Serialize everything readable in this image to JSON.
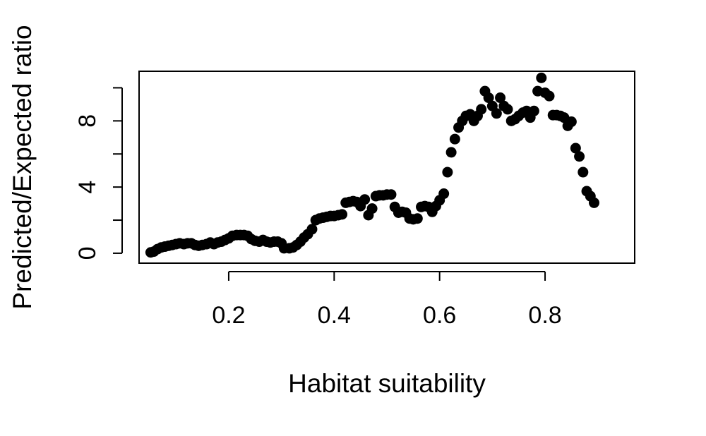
{
  "chart_data": {
    "type": "scatter",
    "title": "",
    "xlabel": "Habitat suitability",
    "ylabel": "Predicted/Expected ratio",
    "xlim": [
      0.03,
      0.97
    ],
    "ylim": [
      -0.6,
      11.0
    ],
    "x_ticks": [
      0.2,
      0.4,
      0.6,
      0.8
    ],
    "x_tick_labels": [
      "0.2",
      "0.4",
      "0.6",
      "0.8"
    ],
    "y_ticks": [
      0,
      2,
      4,
      6,
      8,
      10
    ],
    "y_tick_labels": [
      "0",
      "",
      "4",
      "",
      "8",
      ""
    ],
    "grid": false,
    "legend": "none",
    "point_color": "#000000",
    "points": [
      {
        "x": 0.052,
        "y": 0.05
      },
      {
        "x": 0.058,
        "y": 0.1
      },
      {
        "x": 0.065,
        "y": 0.25
      },
      {
        "x": 0.072,
        "y": 0.35
      },
      {
        "x": 0.079,
        "y": 0.4
      },
      {
        "x": 0.086,
        "y": 0.45
      },
      {
        "x": 0.093,
        "y": 0.5
      },
      {
        "x": 0.1,
        "y": 0.55
      },
      {
        "x": 0.107,
        "y": 0.6
      },
      {
        "x": 0.115,
        "y": 0.55
      },
      {
        "x": 0.122,
        "y": 0.6
      },
      {
        "x": 0.129,
        "y": 0.6
      },
      {
        "x": 0.136,
        "y": 0.5
      },
      {
        "x": 0.143,
        "y": 0.45
      },
      {
        "x": 0.15,
        "y": 0.5
      },
      {
        "x": 0.158,
        "y": 0.55
      },
      {
        "x": 0.165,
        "y": 0.65
      },
      {
        "x": 0.172,
        "y": 0.55
      },
      {
        "x": 0.179,
        "y": 0.65
      },
      {
        "x": 0.186,
        "y": 0.7
      },
      {
        "x": 0.193,
        "y": 0.8
      },
      {
        "x": 0.2,
        "y": 0.9
      },
      {
        "x": 0.207,
        "y": 1.05
      },
      {
        "x": 0.215,
        "y": 1.1
      },
      {
        "x": 0.222,
        "y": 1.1
      },
      {
        "x": 0.229,
        "y": 1.1
      },
      {
        "x": 0.236,
        "y": 1.05
      },
      {
        "x": 0.243,
        "y": 0.85
      },
      {
        "x": 0.25,
        "y": 0.75
      },
      {
        "x": 0.258,
        "y": 0.7
      },
      {
        "x": 0.265,
        "y": 0.8
      },
      {
        "x": 0.272,
        "y": 0.7
      },
      {
        "x": 0.279,
        "y": 0.65
      },
      {
        "x": 0.286,
        "y": 0.7
      },
      {
        "x": 0.293,
        "y": 0.7
      },
      {
        "x": 0.3,
        "y": 0.6
      },
      {
        "x": 0.305,
        "y": 0.3
      },
      {
        "x": 0.315,
        "y": 0.3
      },
      {
        "x": 0.322,
        "y": 0.35
      },
      {
        "x": 0.329,
        "y": 0.5
      },
      {
        "x": 0.336,
        "y": 0.7
      },
      {
        "x": 0.343,
        "y": 0.95
      },
      {
        "x": 0.35,
        "y": 1.15
      },
      {
        "x": 0.358,
        "y": 1.45
      },
      {
        "x": 0.365,
        "y": 2.0
      },
      {
        "x": 0.372,
        "y": 2.1
      },
      {
        "x": 0.379,
        "y": 2.15
      },
      {
        "x": 0.386,
        "y": 2.2
      },
      {
        "x": 0.393,
        "y": 2.25
      },
      {
        "x": 0.4,
        "y": 2.25
      },
      {
        "x": 0.408,
        "y": 2.3
      },
      {
        "x": 0.415,
        "y": 2.35
      },
      {
        "x": 0.422,
        "y": 3.05
      },
      {
        "x": 0.429,
        "y": 3.1
      },
      {
        "x": 0.436,
        "y": 3.15
      },
      {
        "x": 0.443,
        "y": 3.1
      },
      {
        "x": 0.45,
        "y": 2.85
      },
      {
        "x": 0.458,
        "y": 3.25
      },
      {
        "x": 0.465,
        "y": 2.3
      },
      {
        "x": 0.472,
        "y": 2.7
      },
      {
        "x": 0.479,
        "y": 3.45
      },
      {
        "x": 0.486,
        "y": 3.5
      },
      {
        "x": 0.493,
        "y": 3.5
      },
      {
        "x": 0.5,
        "y": 3.55
      },
      {
        "x": 0.508,
        "y": 3.55
      },
      {
        "x": 0.515,
        "y": 2.8
      },
      {
        "x": 0.522,
        "y": 2.45
      },
      {
        "x": 0.529,
        "y": 2.5
      },
      {
        "x": 0.536,
        "y": 2.45
      },
      {
        "x": 0.543,
        "y": 2.1
      },
      {
        "x": 0.55,
        "y": 2.05
      },
      {
        "x": 0.558,
        "y": 2.1
      },
      {
        "x": 0.565,
        "y": 2.8
      },
      {
        "x": 0.572,
        "y": 2.85
      },
      {
        "x": 0.579,
        "y": 2.8
      },
      {
        "x": 0.586,
        "y": 2.5
      },
      {
        "x": 0.593,
        "y": 2.85
      },
      {
        "x": 0.6,
        "y": 3.2
      },
      {
        "x": 0.608,
        "y": 3.6
      },
      {
        "x": 0.615,
        "y": 4.9
      },
      {
        "x": 0.622,
        "y": 6.1
      },
      {
        "x": 0.629,
        "y": 6.9
      },
      {
        "x": 0.636,
        "y": 7.6
      },
      {
        "x": 0.643,
        "y": 8.0
      },
      {
        "x": 0.65,
        "y": 8.3
      },
      {
        "x": 0.658,
        "y": 8.4
      },
      {
        "x": 0.665,
        "y": 8.0
      },
      {
        "x": 0.672,
        "y": 8.3
      },
      {
        "x": 0.679,
        "y": 8.7
      },
      {
        "x": 0.686,
        "y": 9.8
      },
      {
        "x": 0.693,
        "y": 9.4
      },
      {
        "x": 0.7,
        "y": 8.9
      },
      {
        "x": 0.708,
        "y": 8.45
      },
      {
        "x": 0.715,
        "y": 9.4
      },
      {
        "x": 0.722,
        "y": 8.9
      },
      {
        "x": 0.729,
        "y": 8.7
      },
      {
        "x": 0.736,
        "y": 8.0
      },
      {
        "x": 0.743,
        "y": 8.1
      },
      {
        "x": 0.75,
        "y": 8.3
      },
      {
        "x": 0.758,
        "y": 8.5
      },
      {
        "x": 0.765,
        "y": 8.6
      },
      {
        "x": 0.772,
        "y": 8.2
      },
      {
        "x": 0.779,
        "y": 8.6
      },
      {
        "x": 0.786,
        "y": 9.8
      },
      {
        "x": 0.793,
        "y": 10.6
      },
      {
        "x": 0.8,
        "y": 9.7
      },
      {
        "x": 0.808,
        "y": 9.5
      },
      {
        "x": 0.815,
        "y": 8.35
      },
      {
        "x": 0.822,
        "y": 8.35
      },
      {
        "x": 0.829,
        "y": 8.3
      },
      {
        "x": 0.836,
        "y": 8.2
      },
      {
        "x": 0.843,
        "y": 7.7
      },
      {
        "x": 0.85,
        "y": 7.95
      },
      {
        "x": 0.858,
        "y": 6.35
      },
      {
        "x": 0.865,
        "y": 5.85
      },
      {
        "x": 0.872,
        "y": 4.9
      },
      {
        "x": 0.879,
        "y": 3.75
      },
      {
        "x": 0.886,
        "y": 3.45
      },
      {
        "x": 0.893,
        "y": 3.05
      }
    ]
  }
}
